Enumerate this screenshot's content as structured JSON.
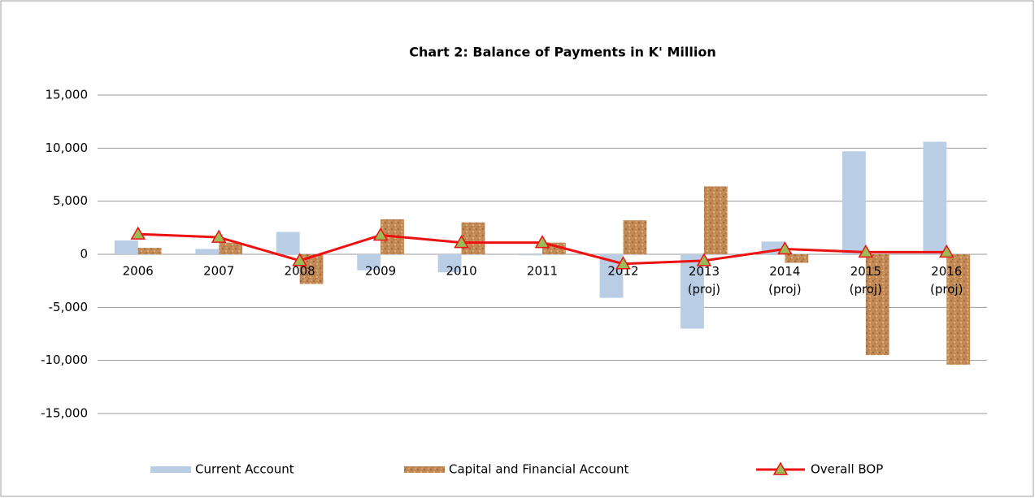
{
  "chart_data": {
    "type": "bar_line",
    "title": "Chart 2: Balance of Payments in K' Million",
    "categories": [
      "2006",
      "2007",
      "2008",
      "2009",
      "2010",
      "2011",
      "2012",
      "2013 (proj)",
      "2014 (proj)",
      "2015 (proj)",
      "2016 (proj)"
    ],
    "series": [
      {
        "name": "Current Account",
        "type": "bar",
        "color": "#b9cde5",
        "values": [
          1300,
          500,
          2100,
          -1500,
          -1700,
          -100,
          -4100,
          -7000,
          1200,
          9700,
          10600
        ]
      },
      {
        "name": "Capital and Financial Account",
        "type": "bar",
        "color": "#c48a55",
        "values": [
          600,
          1100,
          -2800,
          3300,
          3000,
          1100,
          3200,
          6400,
          -800,
          -9500,
          -10400
        ]
      },
      {
        "name": "Overall BOP",
        "type": "line",
        "color": "#ee1111",
        "marker_color": "#9bbb59",
        "values": [
          1900,
          1600,
          -600,
          1800,
          1100,
          1100,
          -900,
          -600,
          500,
          200,
          200
        ]
      }
    ],
    "ylim": [
      -15000,
      15000
    ],
    "yticks": [
      {
        "value": -15000,
        "label": "-15,000"
      },
      {
        "value": -10000,
        "label": "-10,000"
      },
      {
        "value": -5000,
        "label": "-5,000"
      },
      0,
      {
        "value": 5000,
        "label": "5,000"
      },
      {
        "value": 10000,
        "label": "10,000"
      },
      {
        "value": 15000,
        "label": "15,000"
      }
    ],
    "grid": true,
    "legend": "bottom"
  }
}
